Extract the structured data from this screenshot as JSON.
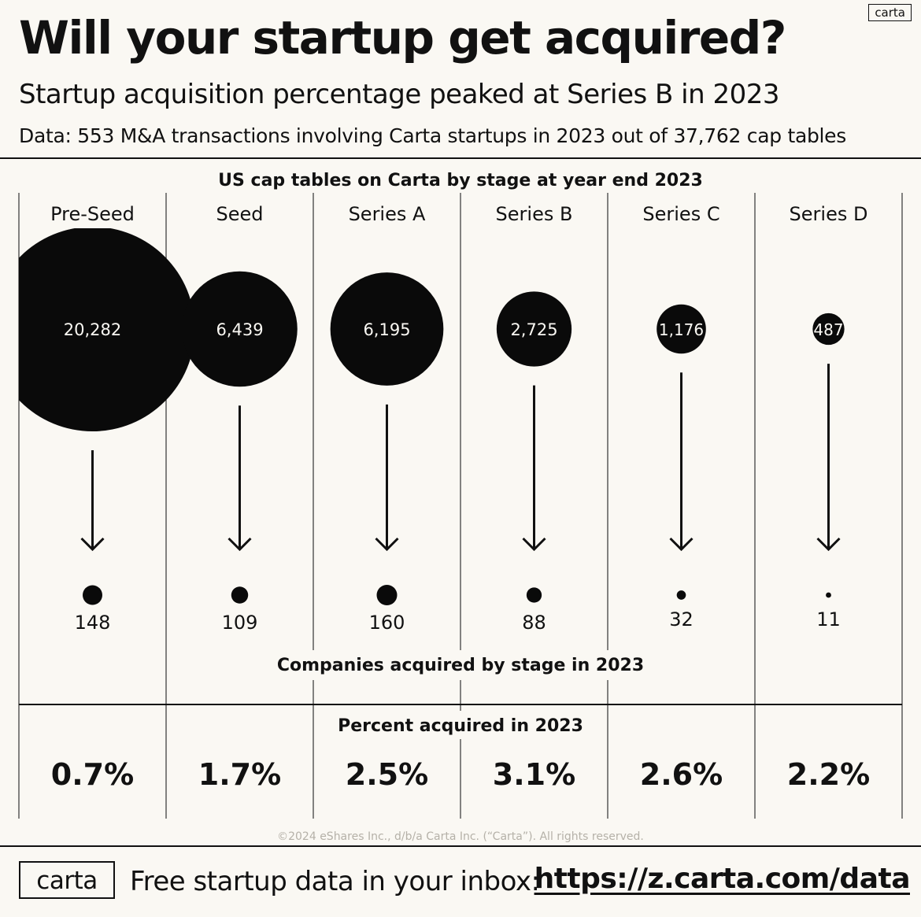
{
  "header": {
    "title": "Will your startup get acquired?",
    "subtitle": "Startup acquisition percentage peaked at Series B in 2023",
    "note": "Data: 553 M&A transactions involving Carta startups in 2023 out of 37,762 cap tables",
    "logo_small": "carta"
  },
  "chart_data": {
    "type": "bubble",
    "categories": [
      "Pre-Seed",
      "Seed",
      "Series A",
      "Series B",
      "Series C",
      "Series D"
    ],
    "series": [
      {
        "values": [
          20282,
          6439,
          6195,
          2725,
          1176,
          487
        ]
      },
      {
        "values": [
          148,
          109,
          160,
          88,
          32,
          11
        ]
      },
      {
        "values": [
          0.7,
          1.7,
          2.5,
          3.1,
          2.6,
          2.2
        ]
      }
    ],
    "cap_table_labels": [
      "20,282",
      "6,439",
      "6,195",
      "2,725",
      "1,176",
      "487"
    ],
    "acquired_labels": [
      "148",
      "109",
      "160",
      "88",
      "32",
      "11"
    ],
    "percent_labels": [
      "0.7%",
      "1.7%",
      "2.5%",
      "3.1%",
      "2.6%",
      "2.2%"
    ],
    "section_titles": {
      "cap_tables": "US cap tables on Carta by stage at year end 2023",
      "acquired": "Companies acquired by stage in 2023",
      "percent": "Percent acquired in 2023"
    },
    "copyright": "©2024 eShares Inc., d/b/a Carta Inc. (“Carta”). All rights reserved."
  },
  "footer": {
    "logo": "carta",
    "text": "Free startup data in your inbox:",
    "link": "https://z.carta.com/data"
  }
}
